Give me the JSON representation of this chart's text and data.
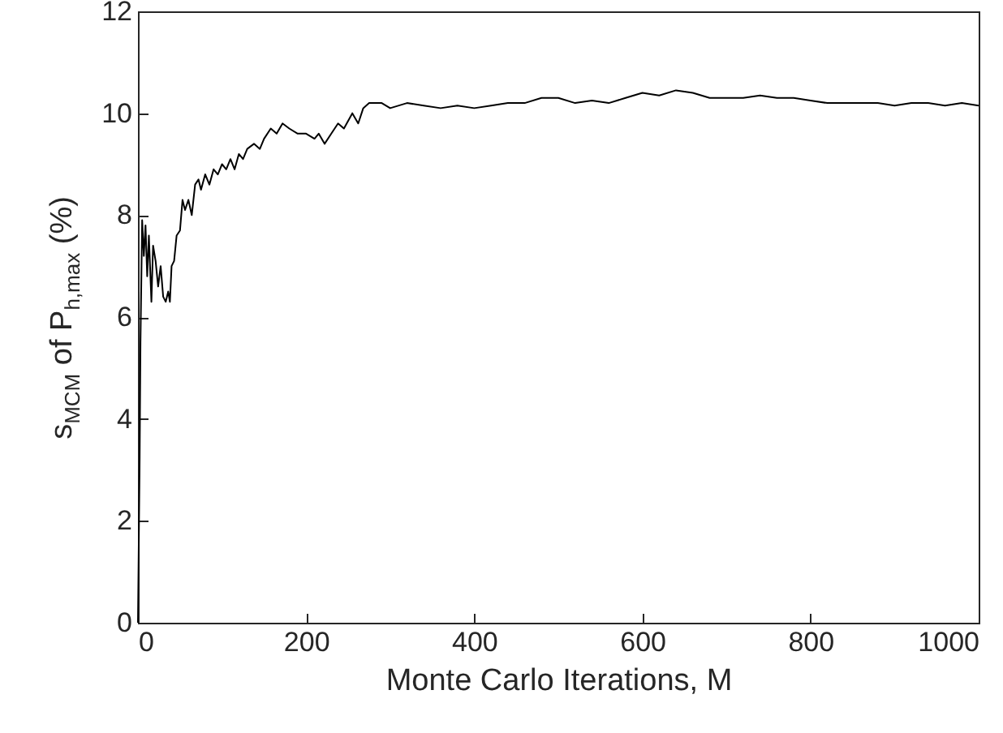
{
  "chart_data": {
    "type": "line",
    "xlabel": "Monte Carlo Iterations, M",
    "ylabel": "s$_{MCM}$ of P$_{h,max}$ (%)",
    "x": [
      0,
      2,
      3,
      5,
      7,
      9,
      11,
      13,
      16,
      18,
      21,
      24,
      27,
      30,
      33,
      36,
      38,
      40,
      43,
      46,
      50,
      53,
      56,
      60,
      64,
      68,
      72,
      75,
      80,
      85,
      90,
      95,
      100,
      105,
      110,
      115,
      120,
      125,
      130,
      138,
      145,
      150,
      158,
      165,
      172,
      180,
      190,
      200,
      210,
      215,
      222,
      230,
      238,
      245,
      255,
      262,
      268,
      275,
      290,
      300,
      320,
      340,
      360,
      380,
      400,
      420,
      440,
      460,
      480,
      500,
      520,
      540,
      560,
      580,
      600,
      620,
      640,
      660,
      680,
      700,
      720,
      740,
      760,
      780,
      800,
      820,
      840,
      860,
      880,
      900,
      920,
      940,
      960,
      980,
      1000
    ],
    "series": [
      {
        "color": "#000000",
        "values": [
          0,
          3.2,
          5.5,
          7.9,
          7.2,
          7.8,
          6.8,
          7.6,
          6.3,
          7.4,
          7.1,
          6.6,
          7.0,
          6.4,
          6.3,
          6.5,
          6.3,
          7.0,
          7.1,
          7.6,
          7.7,
          8.3,
          8.1,
          8.3,
          8.0,
          8.6,
          8.7,
          8.5,
          8.8,
          8.6,
          8.9,
          8.8,
          9.0,
          8.9,
          9.1,
          8.9,
          9.2,
          9.1,
          9.3,
          9.4,
          9.3,
          9.5,
          9.7,
          9.6,
          9.8,
          9.7,
          9.6,
          9.6,
          9.5,
          9.6,
          9.4,
          9.6,
          9.8,
          9.7,
          10.0,
          9.8,
          10.1,
          10.2,
          10.2,
          10.1,
          10.2,
          10.15,
          10.1,
          10.15,
          10.1,
          10.15,
          10.2,
          10.2,
          10.3,
          10.3,
          10.2,
          10.25,
          10.2,
          10.3,
          10.4,
          10.35,
          10.45,
          10.4,
          10.3,
          10.3,
          10.3,
          10.35,
          10.3,
          10.3,
          10.25,
          10.2,
          10.2,
          10.2,
          10.2,
          10.15,
          10.2,
          10.2,
          10.15,
          10.2,
          10.15
        ]
      }
    ],
    "xlim": [
      0,
      1000
    ],
    "xticks": [
      0,
      200,
      400,
      600,
      800,
      1000
    ],
    "ylim": [
      0,
      12
    ],
    "yticks": [
      0,
      2,
      4,
      6,
      8,
      10,
      12
    ],
    "grid": false,
    "marker": "none",
    "line_style": "solid"
  }
}
